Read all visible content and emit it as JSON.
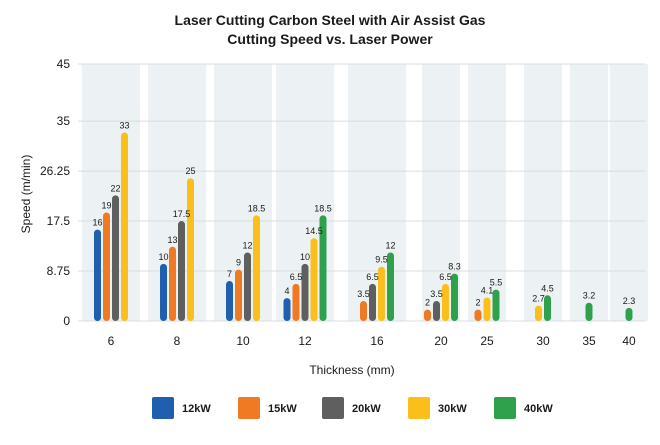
{
  "chart_data": {
    "type": "bar",
    "title": "Laser Cutting Carbon Steel with Air Assist Gas",
    "subtitle": "Cutting Speed vs. Laser Power",
    "xlabel": "Thickness (mm)",
    "ylabel": "Speed (m/min)",
    "ylim": [
      0,
      45
    ],
    "yticks": [
      "0",
      "8.75",
      "17.5",
      "26.25",
      "35",
      "45"
    ],
    "ytick_values": [
      0,
      8.75,
      17.5,
      26.25,
      35,
      45
    ],
    "categories": [
      "6",
      "8",
      "10",
      "12",
      "16",
      "20",
      "25",
      "30",
      "35",
      "40"
    ],
    "series": [
      {
        "name": "12kW",
        "color": "#1f5fae",
        "values": [
          16,
          10,
          7,
          4,
          null,
          null,
          null,
          null,
          null,
          null
        ],
        "labels": [
          "16",
          "10",
          "7",
          "4",
          "",
          "",
          "",
          "",
          "",
          ""
        ]
      },
      {
        "name": "15kW",
        "color": "#f07a24",
        "values": [
          19,
          13,
          9,
          6.5,
          3.5,
          2,
          2,
          null,
          null,
          null
        ],
        "labels": [
          "19",
          "13",
          "9",
          "6.5",
          "3.5",
          "2",
          "2",
          "",
          "",
          ""
        ]
      },
      {
        "name": "20kW",
        "color": "#5f5f5f",
        "values": [
          22,
          17.5,
          12,
          10,
          6.5,
          3.5,
          null,
          null,
          null,
          null
        ],
        "labels": [
          "22",
          "17.5",
          "12",
          "10",
          "6.5",
          "3.5",
          "",
          "",
          "",
          ""
        ]
      },
      {
        "name": "30kW",
        "color": "#fbbf1c",
        "values": [
          33,
          25,
          18.5,
          14.5,
          9.5,
          6.5,
          4.1,
          2.7,
          null,
          null
        ],
        "labels": [
          "33",
          "25",
          "18.5",
          "14.5",
          "9.5",
          "6.5",
          "4.1",
          "2.7",
          "",
          ""
        ]
      },
      {
        "name": "40kW",
        "color": "#2fa04c",
        "values": [
          null,
          null,
          null,
          18.5,
          12,
          8.3,
          5.5,
          4.5,
          3.2,
          2.3
        ],
        "labels": [
          "",
          "",
          "",
          "18.5",
          "12",
          "8.3",
          "5.5",
          "4.5",
          "3.2",
          "2.3"
        ]
      }
    ],
    "grid": true,
    "legend_position": "bottom"
  }
}
